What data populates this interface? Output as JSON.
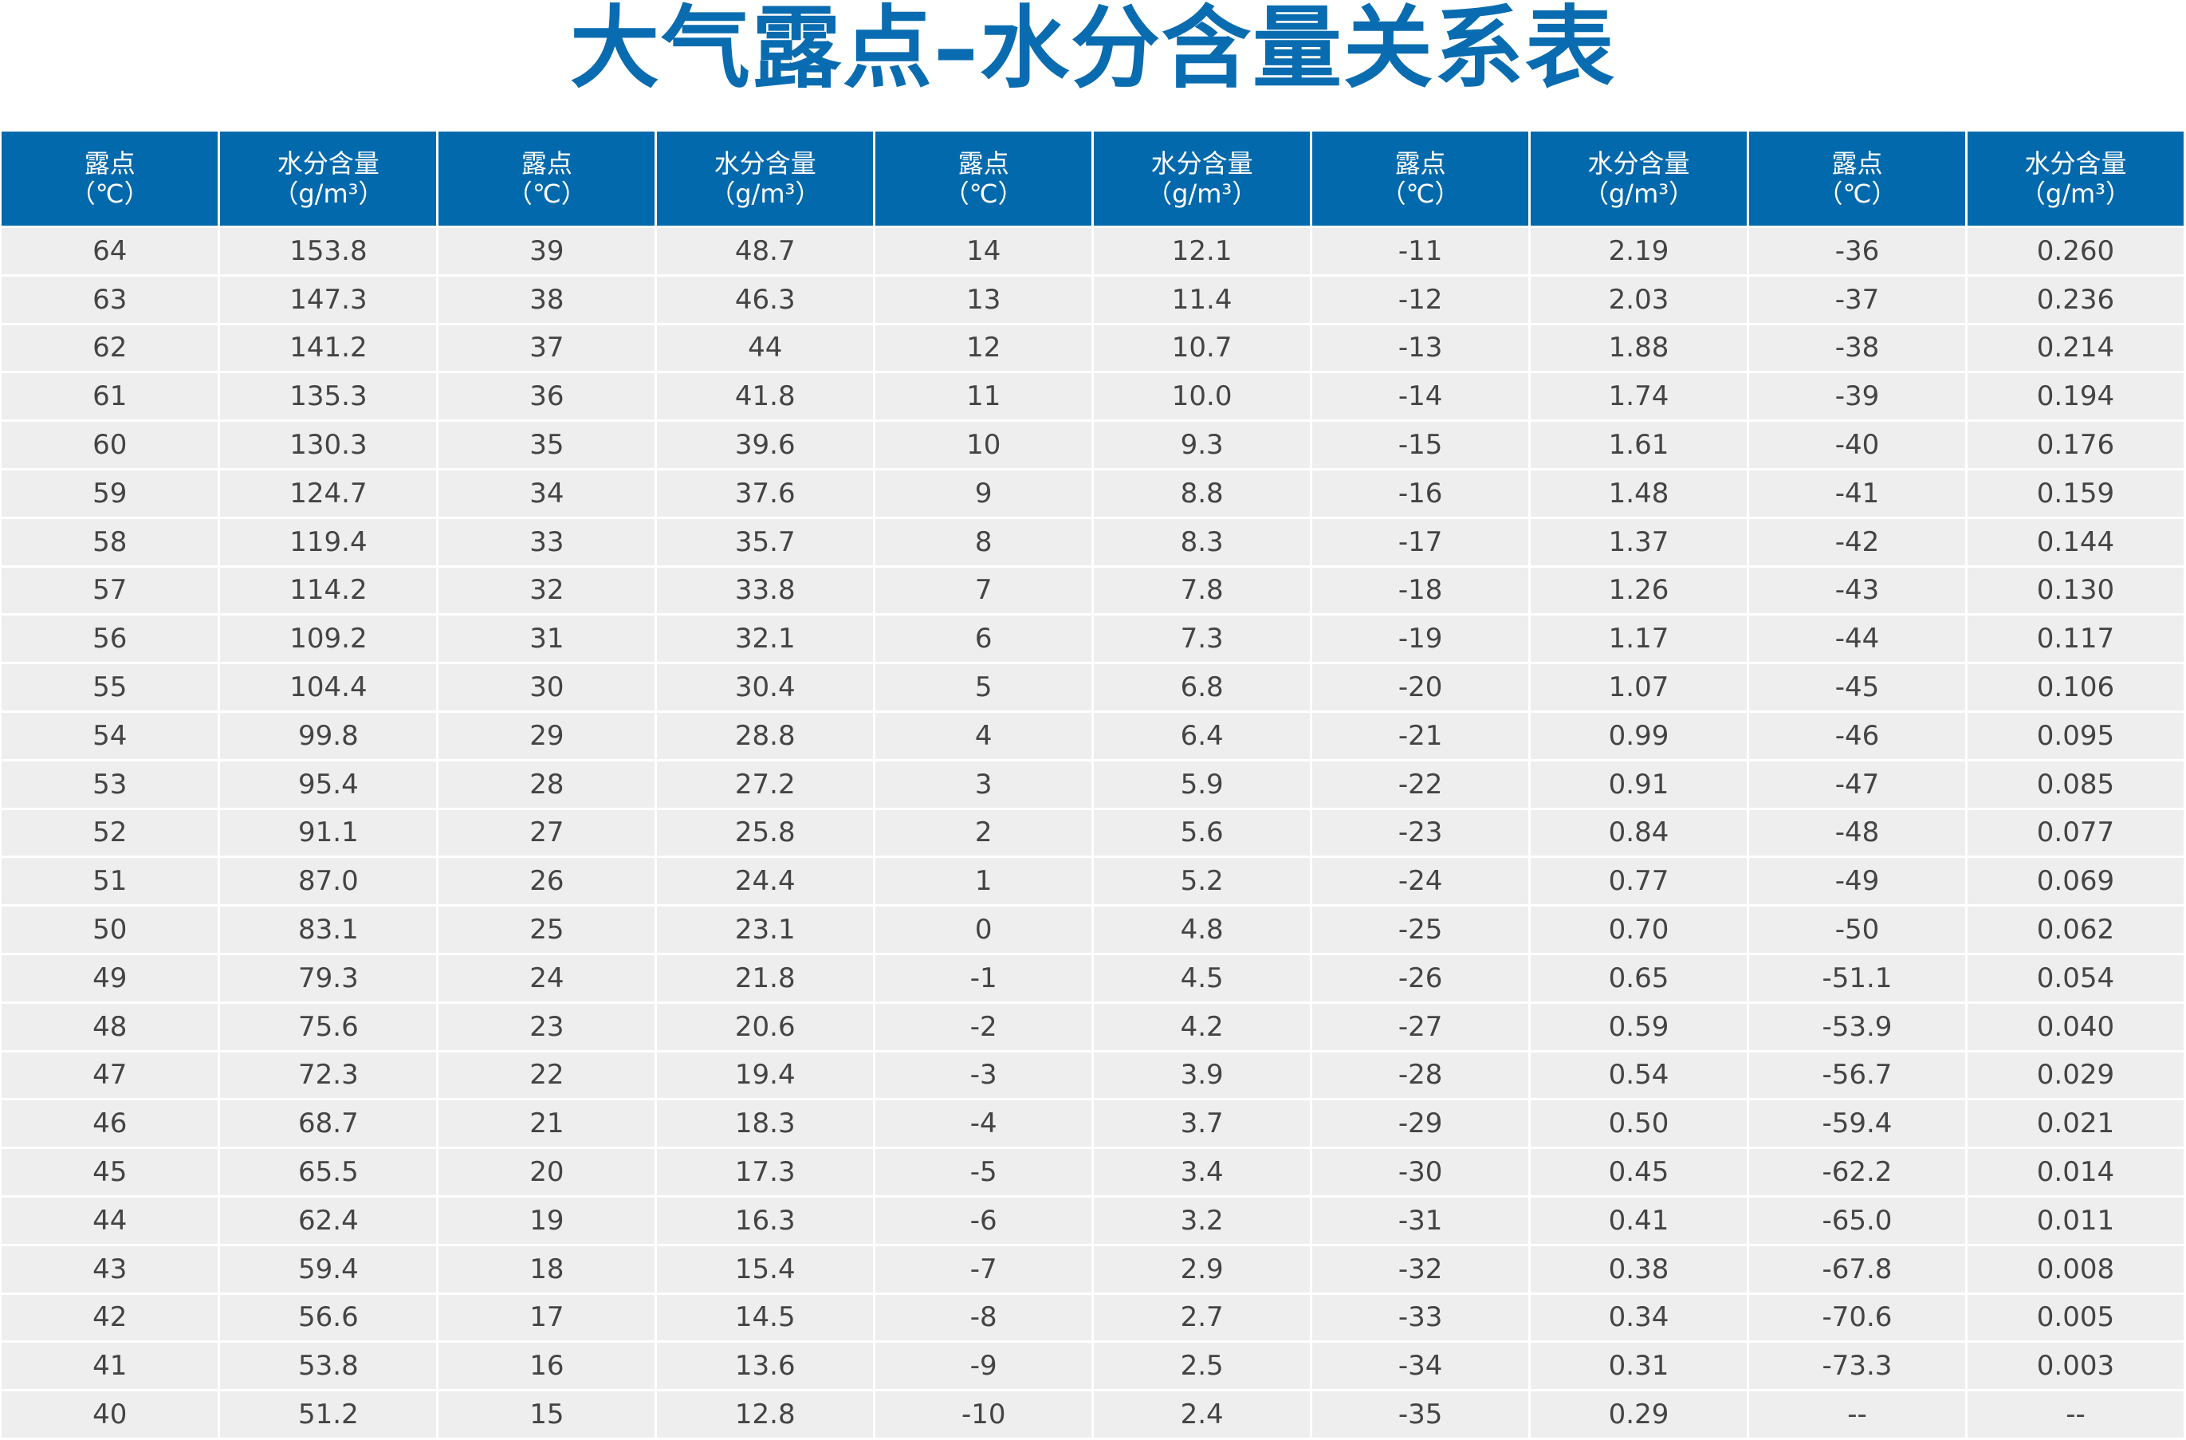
{
  "title": "大气露点–水分含量关系表",
  "colors": {
    "header_bg": "#0369ad",
    "title": "#0a6cb0",
    "row_bg": "#eeeeee"
  },
  "headers": [
    {
      "line1": "露点",
      "line2": "（℃）"
    },
    {
      "line1": "水分含量",
      "line2": "（g/m³）"
    },
    {
      "line1": "露点",
      "line2": "（℃）"
    },
    {
      "line1": "水分含量",
      "line2": "（g/m³）"
    },
    {
      "line1": "露点",
      "line2": "（℃）"
    },
    {
      "line1": "水分含量",
      "line2": "（g/m³）"
    },
    {
      "line1": "露点",
      "line2": "（℃）"
    },
    {
      "line1": "水分含量",
      "line2": "（g/m³）"
    },
    {
      "line1": "露点",
      "line2": "（℃）"
    },
    {
      "line1": "水分含量",
      "line2": "（g/m³）"
    }
  ],
  "rows": [
    [
      "64",
      "153.8",
      "39",
      "48.7",
      "14",
      "12.1",
      "-11",
      "2.19",
      "-36",
      "0.260"
    ],
    [
      "63",
      "147.3",
      "38",
      "46.3",
      "13",
      "11.4",
      "-12",
      "2.03",
      "-37",
      "0.236"
    ],
    [
      "62",
      "141.2",
      "37",
      "44",
      "12",
      "10.7",
      "-13",
      "1.88",
      "-38",
      "0.214"
    ],
    [
      "61",
      "135.3",
      "36",
      "41.8",
      "11",
      "10.0",
      "-14",
      "1.74",
      "-39",
      "0.194"
    ],
    [
      "60",
      "130.3",
      "35",
      "39.6",
      "10",
      "9.3",
      "-15",
      "1.61",
      "-40",
      "0.176"
    ],
    [
      "59",
      "124.7",
      "34",
      "37.6",
      "9",
      "8.8",
      "-16",
      "1.48",
      "-41",
      "0.159"
    ],
    [
      "58",
      "119.4",
      "33",
      "35.7",
      "8",
      "8.3",
      "-17",
      "1.37",
      "-42",
      "0.144"
    ],
    [
      "57",
      "114.2",
      "32",
      "33.8",
      "7",
      "7.8",
      "-18",
      "1.26",
      "-43",
      "0.130"
    ],
    [
      "56",
      "109.2",
      "31",
      "32.1",
      "6",
      "7.3",
      "-19",
      "1.17",
      "-44",
      "0.117"
    ],
    [
      "55",
      "104.4",
      "30",
      "30.4",
      "5",
      "6.8",
      "-20",
      "1.07",
      "-45",
      "0.106"
    ],
    [
      "54",
      "99.8",
      "29",
      "28.8",
      "4",
      "6.4",
      "-21",
      "0.99",
      "-46",
      "0.095"
    ],
    [
      "53",
      "95.4",
      "28",
      "27.2",
      "3",
      "5.9",
      "-22",
      "0.91",
      "-47",
      "0.085"
    ],
    [
      "52",
      "91.1",
      "27",
      "25.8",
      "2",
      "5.6",
      "-23",
      "0.84",
      "-48",
      "0.077"
    ],
    [
      "51",
      "87.0",
      "26",
      "24.4",
      "1",
      "5.2",
      "-24",
      "0.77",
      "-49",
      "0.069"
    ],
    [
      "50",
      "83.1",
      "25",
      "23.1",
      "0",
      "4.8",
      "-25",
      "0.70",
      "-50",
      "0.062"
    ],
    [
      "49",
      "79.3",
      "24",
      "21.8",
      "-1",
      "4.5",
      "-26",
      "0.65",
      "-51.1",
      "0.054"
    ],
    [
      "48",
      "75.6",
      "23",
      "20.6",
      "-2",
      "4.2",
      "-27",
      "0.59",
      "-53.9",
      "0.040"
    ],
    [
      "47",
      "72.3",
      "22",
      "19.4",
      "-3",
      "3.9",
      "-28",
      "0.54",
      "-56.7",
      "0.029"
    ],
    [
      "46",
      "68.7",
      "21",
      "18.3",
      "-4",
      "3.7",
      "-29",
      "0.50",
      "-59.4",
      "0.021"
    ],
    [
      "45",
      "65.5",
      "20",
      "17.3",
      "-5",
      "3.4",
      "-30",
      "0.45",
      "-62.2",
      "0.014"
    ],
    [
      "44",
      "62.4",
      "19",
      "16.3",
      "-6",
      "3.2",
      "-31",
      "0.41",
      "-65.0",
      "0.011"
    ],
    [
      "43",
      "59.4",
      "18",
      "15.4",
      "-7",
      "2.9",
      "-32",
      "0.38",
      "-67.8",
      "0.008"
    ],
    [
      "42",
      "56.6",
      "17",
      "14.5",
      "-8",
      "2.7",
      "-33",
      "0.34",
      "-70.6",
      "0.005"
    ],
    [
      "41",
      "53.8",
      "16",
      "13.6",
      "-9",
      "2.5",
      "-34",
      "0.31",
      "-73.3",
      "0.003"
    ],
    [
      "40",
      "51.2",
      "15",
      "12.8",
      "-10",
      "2.4",
      "-35",
      "0.29",
      "--",
      "--"
    ]
  ]
}
